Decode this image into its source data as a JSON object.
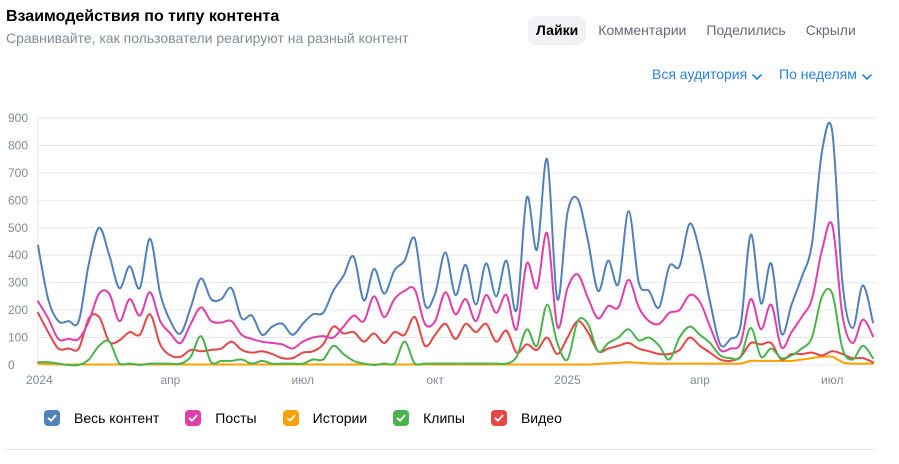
{
  "header": {
    "title": "Взаимодействия по типу контента",
    "subtitle": "Сравнивайте, как пользователи реагируют на разный контент"
  },
  "tabs": [
    {
      "label": "Лайки",
      "active": true
    },
    {
      "label": "Комментарии",
      "active": false
    },
    {
      "label": "Поделились",
      "active": false
    },
    {
      "label": "Скрыли",
      "active": false
    }
  ],
  "filters": {
    "audience": "Вся аудитория",
    "period": "По неделям"
  },
  "legend": [
    {
      "label": "Весь контент",
      "color": "#5181b8"
    },
    {
      "label": "Посты",
      "color": "#e03fab"
    },
    {
      "label": "Истории",
      "color": "#ffa000"
    },
    {
      "label": "Клипы",
      "color": "#4bb34b"
    },
    {
      "label": "Видео",
      "color": "#e64646"
    }
  ],
  "chart_data": {
    "type": "line",
    "title": "Взаимодействия по типу контента",
    "xlabel": "",
    "ylabel": "",
    "ylim": [
      0,
      900
    ],
    "yticks": [
      0,
      100,
      200,
      300,
      400,
      500,
      600,
      700,
      800,
      900
    ],
    "x_range": [
      0,
      82
    ],
    "x_unit": "weeks since 2024-01-01",
    "xticks": [
      {
        "week": 0,
        "label": "2024"
      },
      {
        "week": 13,
        "label": "апр"
      },
      {
        "week": 26,
        "label": "июл"
      },
      {
        "week": 39,
        "label": "окт"
      },
      {
        "week": 52,
        "label": "2025"
      },
      {
        "week": 65,
        "label": "апр"
      },
      {
        "week": 78,
        "label": "июл"
      }
    ],
    "series": [
      {
        "name": "Весь контент",
        "color": "#5181b8",
        "values": [
          435,
          240,
          160,
          160,
          160,
          370,
          500,
          400,
          280,
          360,
          280,
          460,
          260,
          160,
          115,
          210,
          315,
          240,
          240,
          280,
          170,
          180,
          110,
          140,
          150,
          110,
          150,
          185,
          190,
          270,
          325,
          395,
          235,
          350,
          260,
          345,
          380,
          460,
          220,
          260,
          410,
          255,
          365,
          220,
          370,
          250,
          380,
          200,
          610,
          420,
          750,
          240,
          555,
          605,
          455,
          270,
          380,
          295,
          560,
          300,
          270,
          210,
          360,
          360,
          515,
          410,
          230,
          75,
          95,
          145,
          475,
          225,
          370,
          115,
          220,
          320,
          440,
          780,
          850,
          300,
          135,
          290,
          155
        ]
      },
      {
        "name": "Посты",
        "color": "#e03fab",
        "values": [
          232,
          170,
          95,
          95,
          95,
          160,
          260,
          260,
          160,
          240,
          180,
          265,
          160,
          115,
          80,
          150,
          210,
          160,
          155,
          160,
          110,
          95,
          85,
          80,
          75,
          60,
          85,
          100,
          105,
          100,
          140,
          180,
          160,
          250,
          175,
          240,
          270,
          275,
          150,
          160,
          265,
          185,
          240,
          160,
          255,
          190,
          255,
          130,
          370,
          280,
          480,
          140,
          280,
          330,
          245,
          170,
          215,
          210,
          310,
          210,
          160,
          150,
          190,
          200,
          255,
          230,
          140,
          55,
          60,
          80,
          240,
          130,
          220,
          65,
          120,
          175,
          240,
          420,
          510,
          180,
          80,
          165,
          105
        ]
      },
      {
        "name": "Истории",
        "color": "#ffa000",
        "values": [
          5,
          3,
          2,
          2,
          2,
          2,
          2,
          2,
          2,
          2,
          2,
          2,
          2,
          2,
          2,
          2,
          2,
          2,
          2,
          2,
          2,
          2,
          2,
          2,
          2,
          2,
          2,
          2,
          2,
          2,
          2,
          2,
          2,
          2,
          2,
          2,
          2,
          2,
          2,
          2,
          2,
          2,
          2,
          2,
          2,
          2,
          2,
          2,
          2,
          2,
          2,
          2,
          2,
          2,
          2,
          4,
          6,
          8,
          10,
          8,
          6,
          5,
          5,
          5,
          5,
          5,
          5,
          5,
          5,
          5,
          15,
          15,
          15,
          15,
          15,
          20,
          25,
          30,
          30,
          10,
          5,
          5,
          5
        ]
      },
      {
        "name": "Клипы",
        "color": "#4bb34b",
        "values": [
          10,
          10,
          5,
          0,
          0,
          20,
          70,
          85,
          5,
          5,
          0,
          5,
          5,
          5,
          5,
          30,
          105,
          10,
          15,
          15,
          20,
          5,
          15,
          5,
          5,
          5,
          5,
          20,
          20,
          70,
          40,
          15,
          5,
          0,
          5,
          5,
          85,
          5,
          5,
          5,
          5,
          5,
          5,
          5,
          5,
          5,
          5,
          30,
          130,
          70,
          220,
          80,
          20,
          160,
          150,
          50,
          80,
          100,
          130,
          90,
          100,
          70,
          20,
          100,
          140,
          110,
          80,
          35,
          25,
          30,
          135,
          30,
          60,
          25,
          35,
          60,
          100,
          250,
          260,
          60,
          20,
          70,
          25
        ]
      },
      {
        "name": "Видео",
        "color": "#e64646",
        "values": [
          190,
          120,
          60,
          60,
          60,
          170,
          175,
          85,
          90,
          120,
          110,
          185,
          75,
          35,
          30,
          55,
          50,
          55,
          60,
          85,
          55,
          45,
          50,
          40,
          25,
          25,
          45,
          50,
          75,
          140,
          115,
          120,
          85,
          115,
          80,
          120,
          110,
          175,
          70,
          110,
          150,
          95,
          150,
          120,
          150,
          85,
          125,
          45,
          75,
          55,
          100,
          40,
          100,
          160,
          120,
          50,
          60,
          70,
          80,
          60,
          50,
          40,
          40,
          55,
          100,
          70,
          45,
          20,
          15,
          30,
          80,
          75,
          80,
          20,
          40,
          40,
          45,
          35,
          50,
          40,
          25,
          25,
          10
        ]
      }
    ]
  }
}
